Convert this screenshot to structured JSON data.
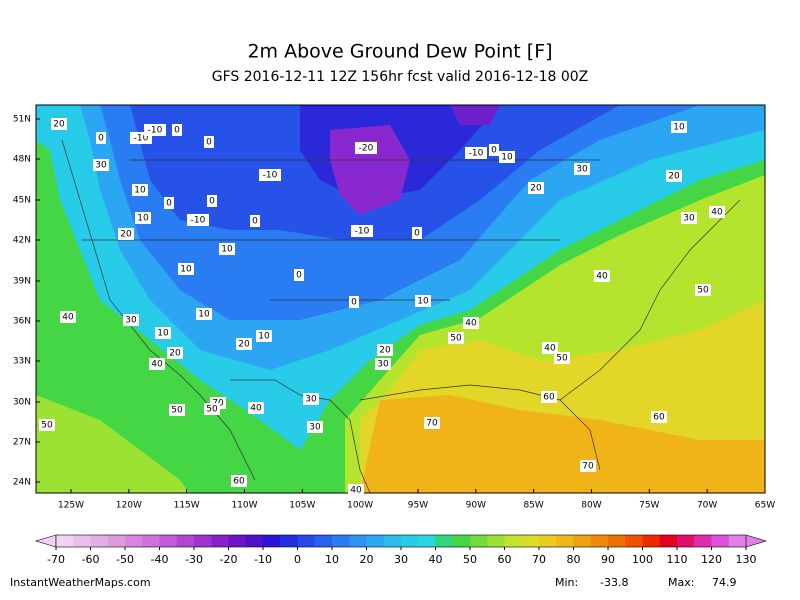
{
  "header": {
    "title": "2m Above Ground Dew Point [F]",
    "subtitle": "GFS 2016-12-11 12Z 156hr fcst valid 2016-12-18 00Z"
  },
  "map": {
    "lat_labels": [
      "51N",
      "48N",
      "45N",
      "42N",
      "39N",
      "36N",
      "33N",
      "30N",
      "27N",
      "24N"
    ],
    "lon_labels": [
      "125W",
      "120W",
      "115W",
      "110W",
      "105W",
      "100W",
      "95W",
      "90W",
      "85W",
      "80W",
      "75W",
      "70W",
      "65W"
    ],
    "contour_labels": [
      20,
      0,
      -10,
      -10,
      0,
      0,
      -20,
      -10,
      0,
      10,
      10,
      30,
      -10,
      30,
      20,
      10,
      20,
      0,
      0,
      10,
      -10,
      0,
      30,
      40,
      20,
      -10,
      0,
      10,
      10,
      0,
      40,
      50,
      0,
      10,
      40,
      30,
      10,
      40,
      10,
      10,
      50,
      20,
      20,
      40,
      50,
      20,
      30,
      40,
      60,
      30,
      70,
      50,
      50,
      40,
      60,
      70,
      30,
      50,
      70,
      60,
      40
    ]
  },
  "colorbar": {
    "ticks": [
      -70,
      -60,
      -50,
      -40,
      -30,
      -20,
      -10,
      0,
      10,
      20,
      30,
      40,
      50,
      60,
      70,
      80,
      90,
      100,
      110,
      120,
      130
    ],
    "colors": [
      "#f2d2f2",
      "#eac0ea",
      "#e4aee4",
      "#de9ade",
      "#d884e0",
      "#d070dc",
      "#c45ad8",
      "#b444d4",
      "#a030d0",
      "#8820cc",
      "#6c14c8",
      "#5010c8",
      "#2a14d8",
      "#2030e0",
      "#2448ea",
      "#2862f0",
      "#2a7af2",
      "#2c92f4",
      "#2ca8f2",
      "#2cbcee",
      "#28ccea",
      "#24d8dc",
      "#2cd878",
      "#44d644",
      "#72dc38",
      "#9ce232",
      "#c4e42c",
      "#dcdc28",
      "#e8cc22",
      "#f0b818",
      "#f0a010",
      "#f08808",
      "#f07000",
      "#f05000",
      "#f02800",
      "#e80020",
      "#e0106a",
      "#e02cb0",
      "#e050d8",
      "#e080e8"
    ]
  },
  "footer": {
    "site": "InstantWeatherMaps.com",
    "min_label": "Min:",
    "min_value": -33.8,
    "max_label": "Max:",
    "max_value": 74.9
  }
}
